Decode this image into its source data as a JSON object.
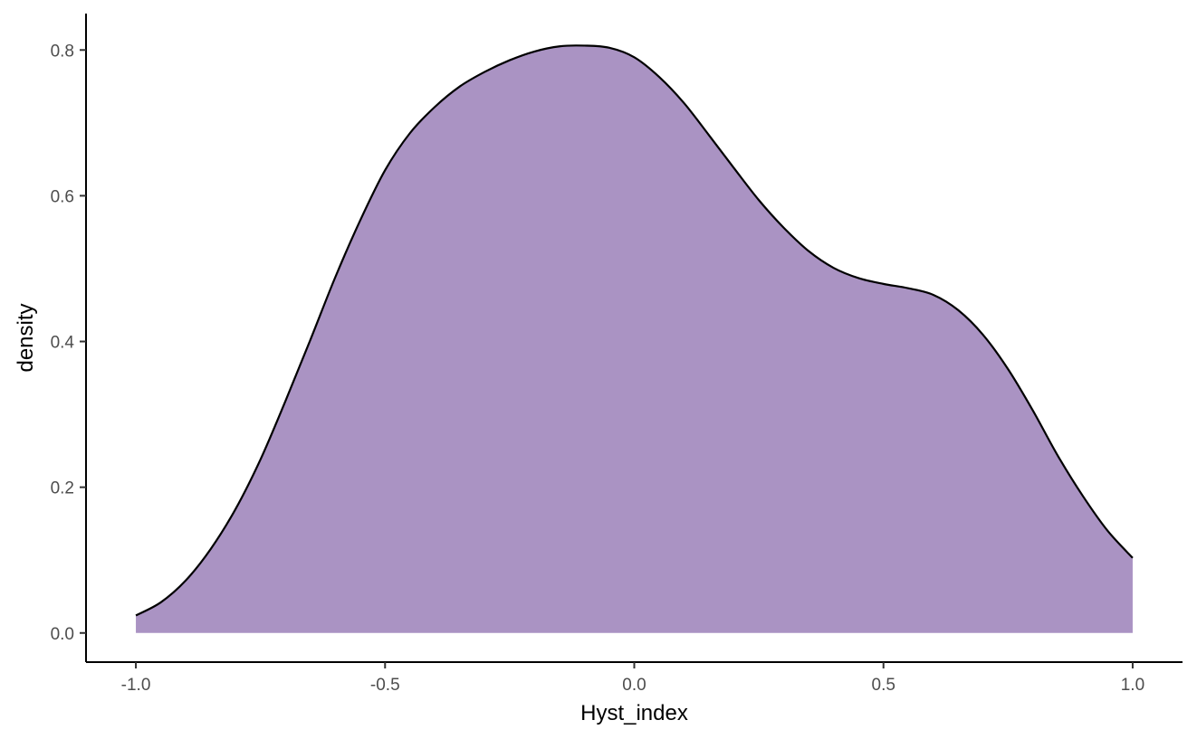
{
  "chart_data": {
    "type": "area",
    "title": "",
    "xlabel": "Hyst_index",
    "ylabel": "density",
    "xlim": [
      -1.1,
      1.1
    ],
    "ylim": [
      -0.04,
      0.85
    ],
    "grid": false,
    "x_ticks": [
      -1.0,
      -0.5,
      0.0,
      0.5,
      1.0
    ],
    "x_tick_labels": [
      "-1.0",
      "-0.5",
      "0.0",
      "0.5",
      "1.0"
    ],
    "y_ticks": [
      0.0,
      0.2,
      0.4,
      0.6,
      0.8
    ],
    "y_tick_labels": [
      "0.0",
      "0.2",
      "0.4",
      "0.6",
      "0.8"
    ],
    "fill_color": "#AA93C3",
    "line_color": "#000000",
    "x": [
      -1.0,
      -0.95,
      -0.9,
      -0.85,
      -0.8,
      -0.75,
      -0.7,
      -0.65,
      -0.6,
      -0.55,
      -0.5,
      -0.45,
      -0.4,
      -0.35,
      -0.3,
      -0.25,
      -0.2,
      -0.15,
      -0.1,
      -0.05,
      0.0,
      0.05,
      0.1,
      0.15,
      0.2,
      0.25,
      0.3,
      0.35,
      0.4,
      0.45,
      0.5,
      0.55,
      0.6,
      0.65,
      0.7,
      0.75,
      0.8,
      0.85,
      0.9,
      0.95,
      1.0
    ],
    "y": [
      0.024,
      0.042,
      0.072,
      0.115,
      0.17,
      0.238,
      0.318,
      0.402,
      0.488,
      0.566,
      0.635,
      0.686,
      0.722,
      0.75,
      0.77,
      0.786,
      0.798,
      0.805,
      0.806,
      0.803,
      0.79,
      0.763,
      0.727,
      0.683,
      0.638,
      0.594,
      0.556,
      0.524,
      0.501,
      0.487,
      0.479,
      0.473,
      0.464,
      0.443,
      0.409,
      0.362,
      0.305,
      0.243,
      0.188,
      0.14,
      0.103
    ]
  }
}
